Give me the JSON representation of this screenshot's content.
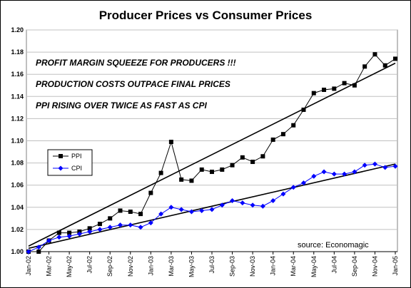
{
  "chart_data": {
    "type": "line",
    "title": "Producer Prices vs Consumer Prices",
    "xlabel": "",
    "ylabel": "",
    "ylim": [
      1.0,
      1.2
    ],
    "yticks": [
      "1.00",
      "1.02",
      "1.04",
      "1.06",
      "1.08",
      "1.10",
      "1.12",
      "1.14",
      "1.16",
      "1.18",
      "1.20"
    ],
    "x_tick_labels": [
      "Jan-02",
      "Mar-02",
      "May-02",
      "Jul-02",
      "Sep-02",
      "Nov-02",
      "Jan-03",
      "Mar-03",
      "May-03",
      "Jul-03",
      "Sep-03",
      "Nov-03",
      "Jan-04",
      "Mar-04",
      "May-04",
      "Jul-04",
      "Sep-04",
      "Nov-04",
      "Jan-05"
    ],
    "grid": true,
    "legend_position": "left",
    "colors": {
      "PPI": "#000000",
      "CPI": "#0000ff",
      "trend": "#000000",
      "grid": "#c0c0c0"
    },
    "series": [
      {
        "name": "PPI",
        "marker": "square",
        "values": [
          1.0,
          1.0,
          1.01,
          1.017,
          1.017,
          1.018,
          1.021,
          1.025,
          1.03,
          1.037,
          1.036,
          1.034,
          1.053,
          1.071,
          1.099,
          1.065,
          1.064,
          1.074,
          1.072,
          1.074,
          1.078,
          1.085,
          1.081,
          1.086,
          1.101,
          1.106,
          1.114,
          1.128,
          1.143,
          1.146,
          1.147,
          1.152,
          1.15,
          1.167,
          1.178,
          1.168,
          1.174
        ]
      },
      {
        "name": "CPI",
        "marker": "diamond",
        "values": [
          1.0,
          1.004,
          1.01,
          1.013,
          1.014,
          1.016,
          1.018,
          1.02,
          1.022,
          1.024,
          1.024,
          1.022,
          1.026,
          1.034,
          1.04,
          1.038,
          1.036,
          1.037,
          1.038,
          1.042,
          1.046,
          1.044,
          1.042,
          1.041,
          1.046,
          1.052,
          1.058,
          1.062,
          1.068,
          1.072,
          1.07,
          1.07,
          1.072,
          1.078,
          1.079,
          1.076,
          1.077
        ]
      }
    ],
    "trendlines": [
      {
        "of": "PPI",
        "start": 1.005,
        "end": 1.17
      },
      {
        "of": "CPI",
        "start": 1.003,
        "end": 1.079
      }
    ],
    "annotations": [
      "PROFIT MARGIN SQUEEZE FOR PRODUCERS !!!",
      "PRODUCTION COSTS OUTPACE FINAL PRICES",
      "PPI RISING OVER TWICE AS FAST AS CPI"
    ],
    "source": "source:  Economagic"
  }
}
